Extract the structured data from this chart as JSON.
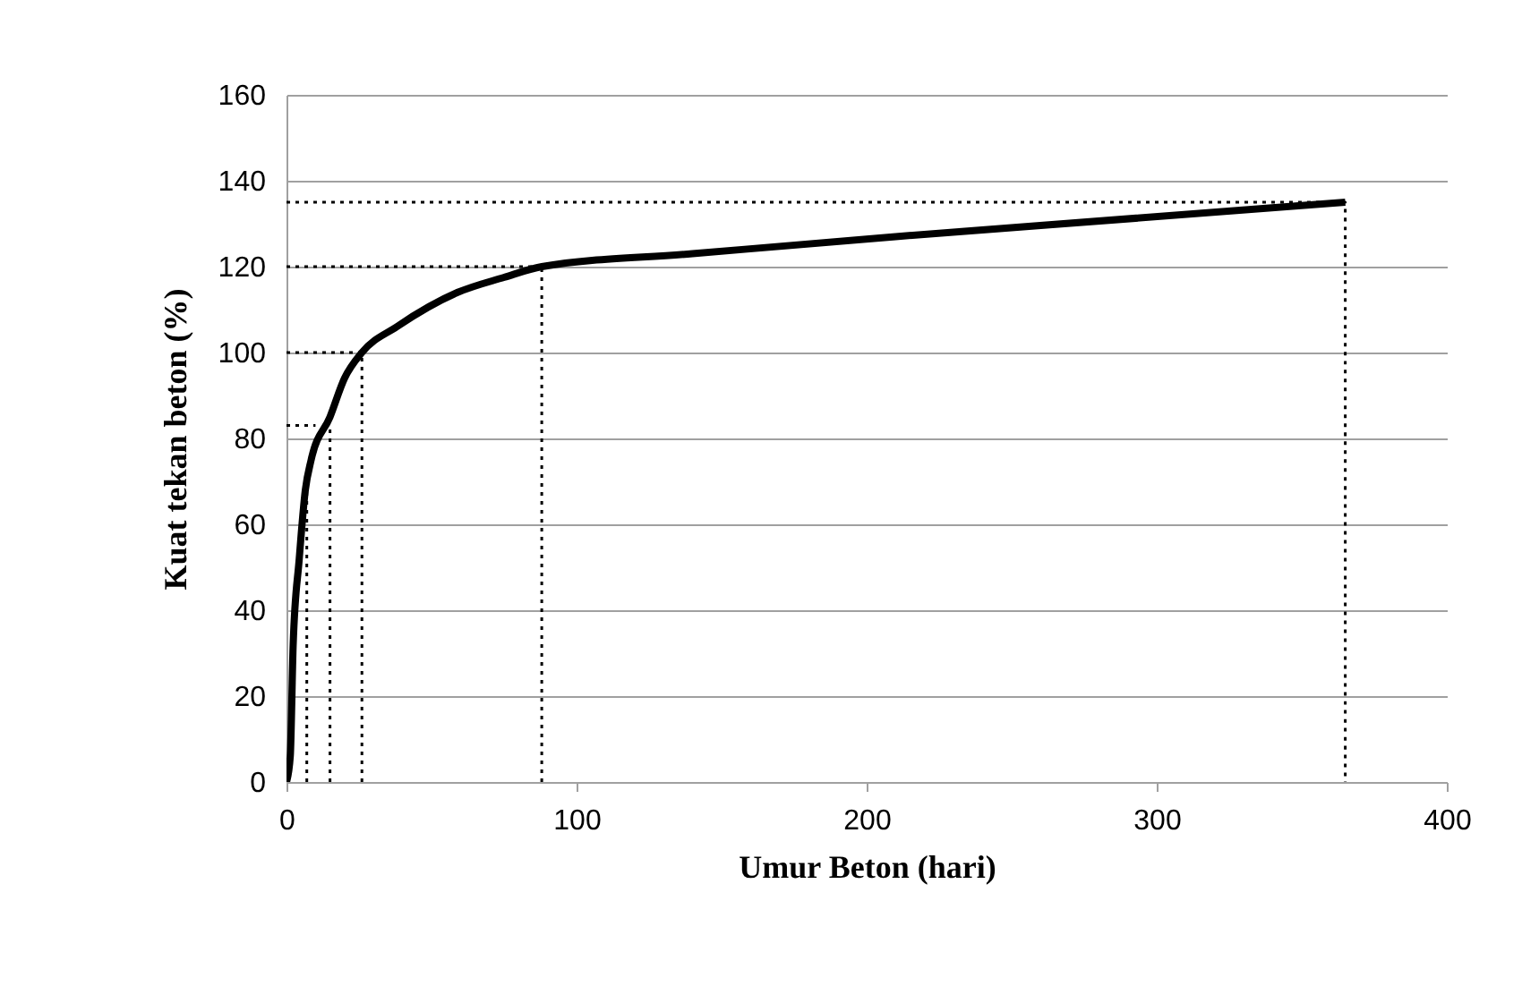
{
  "chart_data": {
    "type": "line",
    "xlabel": "Umur Beton (hari)",
    "ylabel": "Kuat tekan beton (%)",
    "xlim": [
      0,
      400
    ],
    "xticks": [
      0,
      100,
      200,
      300,
      400
    ],
    "ylim": [
      0,
      160
    ],
    "yticks": [
      0,
      20,
      40,
      60,
      80,
      100,
      120,
      140,
      160
    ],
    "grid": "y",
    "marker": "none",
    "series": [
      {
        "color": "#000000",
        "line_style": "solid",
        "x": [
          0,
          1.3,
          2.3,
          4.4,
          6.5,
          8.5,
          15,
          20,
          26,
          38,
          59,
          75,
          88,
          140,
          210,
          365
        ],
        "values": [
          0,
          6,
          32,
          52,
          68,
          75,
          85,
          94,
          100,
          106,
          114,
          117.5,
          120,
          123,
          127,
          135
        ]
      },
      {
        "color": "#000000",
        "line_style": "dotted",
        "x": [
          0,
          365,
          365
        ],
        "values": [
          135,
          135,
          0
        ]
      },
      {
        "color": "#000000",
        "line_style": "dotted",
        "x": [
          0,
          85
        ],
        "values": [
          120,
          120
        ]
      },
      {
        "color": "#000000",
        "line_style": "dotted",
        "x": [
          88,
          88
        ],
        "values": [
          0,
          120
        ]
      },
      {
        "color": "#000000",
        "line_style": "dotted",
        "x": [
          0,
          26
        ],
        "values": [
          100,
          100
        ]
      },
      {
        "color": "#000000",
        "line_style": "dotted",
        "x": [
          26,
          26
        ],
        "values": [
          0,
          100
        ]
      },
      {
        "color": "#000000",
        "line_style": "dotted",
        "x": [
          0,
          10
        ],
        "values": [
          83,
          83
        ]
      },
      {
        "color": "#000000",
        "line_style": "dotted",
        "x": [
          15,
          15
        ],
        "values": [
          0,
          83
        ]
      },
      {
        "color": "#000000",
        "line_style": "dotted",
        "x": [
          7,
          7
        ],
        "values": [
          0,
          72
        ]
      }
    ]
  }
}
